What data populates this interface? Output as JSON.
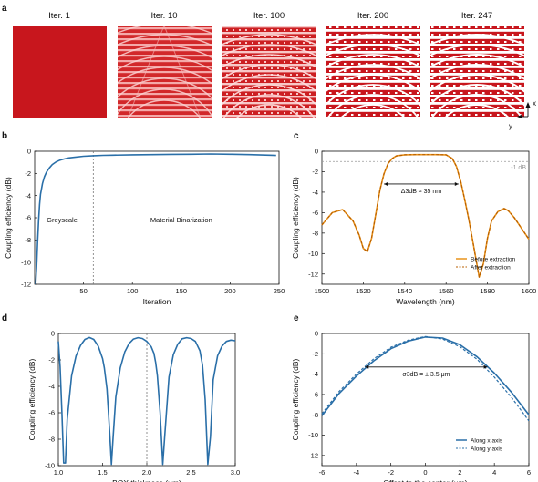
{
  "panels": {
    "a": {
      "letter": "a",
      "iterations": [
        "Iter. 1",
        "Iter. 10",
        "Iter. 100",
        "Iter. 200",
        "Iter. 247"
      ],
      "axis_x": "x",
      "axis_y": "y",
      "colors": {
        "base": "#c8161d",
        "light": "#f2b0b0",
        "white": "#ffffff"
      }
    },
    "b": {
      "letter": "b"
    },
    "c": {
      "letter": "c"
    },
    "d": {
      "letter": "d"
    },
    "e": {
      "letter": "e"
    }
  },
  "chart_data": [
    {
      "id": "b",
      "type": "line",
      "xlabel": "Iteration",
      "ylabel": "Coupling efficiency (dB)",
      "xlim": [
        0,
        250
      ],
      "ylim": [
        -12,
        0
      ],
      "xticks": [
        "50",
        "100",
        "150",
        "200",
        "250"
      ],
      "yticks": [
        "0",
        "-2",
        "-4",
        "-6",
        "-8",
        "-10",
        "-12"
      ],
      "color": "#2a6fa8",
      "vline": 60,
      "annotations": [
        "Greyscale",
        "Material Binarization"
      ],
      "series": [
        {
          "x": [
            1,
            2,
            3,
            4,
            5,
            6,
            8,
            10,
            12,
            15,
            18,
            22,
            26,
            30,
            35,
            40,
            50,
            60,
            70,
            80,
            100,
            120,
            140,
            160,
            180,
            200,
            220,
            240,
            247
          ],
          "y": [
            -12,
            -10.5,
            -8.2,
            -6.3,
            -4.8,
            -3.9,
            -2.9,
            -2.3,
            -1.9,
            -1.5,
            -1.2,
            -0.95,
            -0.8,
            -0.7,
            -0.6,
            -0.55,
            -0.45,
            -0.4,
            -0.37,
            -0.35,
            -0.32,
            -0.3,
            -0.28,
            -0.27,
            -0.25,
            -0.27,
            -0.3,
            -0.35,
            -0.38
          ]
        }
      ]
    },
    {
      "id": "c",
      "type": "line",
      "xlabel": "Wavelength (nm)",
      "ylabel": "Coupling efficiency (dB)",
      "xlim": [
        1500,
        1600
      ],
      "ylim": [
        -13,
        0
      ],
      "xticks": [
        "1500",
        "1520",
        "1540",
        "1560",
        "1580",
        "1600"
      ],
      "yticks": [
        "0",
        "-2",
        "-4",
        "-6",
        "-8",
        "-10",
        "-12"
      ],
      "color": "#e8921a",
      "ref_line": -1,
      "ref_label": "-1 dB",
      "bandwidth_label": "Δ3dB ≈ 35 nm",
      "bandwidth_range": [
        1530,
        1566
      ],
      "bandwidth_y": -3.2,
      "legend": [
        "Before extraction",
        "After extraction"
      ],
      "legend_position": "bottom-right",
      "series": [
        {
          "name": "Before extraction",
          "x": [
            1500,
            1505,
            1510,
            1515,
            1518,
            1520,
            1522,
            1524,
            1526,
            1528,
            1530,
            1532,
            1534,
            1536,
            1540,
            1545,
            1550,
            1555,
            1560,
            1563,
            1565,
            1567,
            1569,
            1571,
            1573,
            1575,
            1576,
            1578,
            1580,
            1582,
            1585,
            1588,
            1590,
            1593,
            1596,
            1600
          ],
          "y": [
            -7.2,
            -6.0,
            -5.7,
            -6.8,
            -8.2,
            -9.5,
            -9.8,
            -8.5,
            -6.2,
            -3.8,
            -2.2,
            -1.2,
            -0.7,
            -0.45,
            -0.35,
            -0.33,
            -0.33,
            -0.33,
            -0.35,
            -0.7,
            -1.5,
            -2.9,
            -4.7,
            -6.7,
            -8.9,
            -11.2,
            -12.3,
            -11.0,
            -8.5,
            -6.8,
            -5.9,
            -5.6,
            -5.8,
            -6.5,
            -7.4,
            -8.6
          ]
        },
        {
          "name": "After extraction",
          "x": [
            1500,
            1505,
            1510,
            1515,
            1518,
            1520,
            1522,
            1524,
            1526,
            1528,
            1530,
            1532,
            1534,
            1536,
            1540,
            1545,
            1550,
            1555,
            1560,
            1563,
            1565,
            1567,
            1569,
            1571,
            1573,
            1575,
            1576,
            1578,
            1580,
            1582,
            1585,
            1588,
            1590,
            1593,
            1596,
            1600
          ],
          "y": [
            -7.2,
            -6.0,
            -5.7,
            -6.8,
            -8.2,
            -9.5,
            -9.8,
            -8.5,
            -6.2,
            -3.8,
            -2.2,
            -1.2,
            -0.7,
            -0.45,
            -0.35,
            -0.33,
            -0.33,
            -0.33,
            -0.35,
            -0.7,
            -1.5,
            -2.9,
            -4.7,
            -6.7,
            -8.9,
            -11.2,
            -12.3,
            -11.0,
            -8.5,
            -6.8,
            -5.9,
            -5.6,
            -5.8,
            -6.5,
            -7.4,
            -8.6
          ]
        }
      ]
    },
    {
      "id": "d",
      "type": "line",
      "xlabel": "BOX thickness (μm)",
      "ylabel": "Coupling efficiency (dB)",
      "xlim": [
        1.0,
        3.0
      ],
      "ylim": [
        -10,
        0
      ],
      "xticks": [
        "1.0",
        "1.5",
        "2.0",
        "2.5",
        "3.0"
      ],
      "yticks": [
        "0",
        "-2",
        "-4",
        "-6",
        "-8",
        "-10"
      ],
      "color": "#2a6fa8",
      "vline": 2.0,
      "series": [
        {
          "x": [
            1.0,
            1.02,
            1.04,
            1.06,
            1.08,
            1.1,
            1.15,
            1.2,
            1.25,
            1.3,
            1.35,
            1.4,
            1.45,
            1.5,
            1.52,
            1.55,
            1.58,
            1.6,
            1.62,
            1.65,
            1.7,
            1.75,
            1.8,
            1.85,
            1.9,
            1.95,
            2.0,
            2.05,
            2.08,
            2.1,
            2.12,
            2.15,
            2.18,
            2.2,
            2.25,
            2.3,
            2.35,
            2.4,
            2.45,
            2.5,
            2.55,
            2.6,
            2.63,
            2.66,
            2.69,
            2.72,
            2.75,
            2.8,
            2.85,
            2.9,
            2.95,
            3.0
          ],
          "y": [
            -0.6,
            -2.5,
            -6.0,
            -9.8,
            -9.8,
            -6.5,
            -3.2,
            -1.7,
            -0.9,
            -0.45,
            -0.3,
            -0.45,
            -0.95,
            -1.9,
            -2.6,
            -4.2,
            -7.5,
            -9.9,
            -7.8,
            -4.8,
            -2.6,
            -1.4,
            -0.75,
            -0.42,
            -0.32,
            -0.38,
            -0.6,
            -1.0,
            -1.5,
            -2.2,
            -3.2,
            -6.0,
            -9.9,
            -8.0,
            -3.3,
            -1.6,
            -0.8,
            -0.4,
            -0.32,
            -0.38,
            -0.6,
            -1.3,
            -2.4,
            -5.0,
            -9.9,
            -7.8,
            -3.5,
            -1.7,
            -0.95,
            -0.6,
            -0.5,
            -0.55
          ]
        }
      ]
    },
    {
      "id": "e",
      "type": "line",
      "xlabel": "Offset to the center (μm)",
      "ylabel": "Coupling efficiency (dB)",
      "xlim": [
        -6,
        6
      ],
      "ylim": [
        -13,
        0
      ],
      "xticks": [
        "-6",
        "-4",
        "-2",
        "0",
        "2",
        "4",
        "6"
      ],
      "yticks": [
        "0",
        "-2",
        "-4",
        "-6",
        "-8",
        "-10",
        "-12"
      ],
      "color": "#2a6fa8",
      "sigma_label": "σ3dB = ± 3.5 μm",
      "sigma_range": [
        -3.5,
        3.6
      ],
      "sigma_y": -3.3,
      "legend": [
        "Along x axis",
        "Along y axis"
      ],
      "legend_position": "bottom-right",
      "series": [
        {
          "name": "Along x axis",
          "x": [
            -6,
            -5,
            -4,
            -3,
            -2,
            -1,
            0,
            1,
            2,
            3,
            4,
            5,
            6
          ],
          "y": [
            -8.1,
            -5.9,
            -4.2,
            -2.7,
            -1.5,
            -0.75,
            -0.35,
            -0.45,
            -1.1,
            -2.3,
            -3.9,
            -5.8,
            -8.0
          ]
        },
        {
          "name": "Along y axis",
          "x": [
            -6,
            -5,
            -4,
            -3,
            -2,
            -1,
            0,
            1,
            2,
            3,
            4,
            5,
            6
          ],
          "y": [
            -7.9,
            -5.7,
            -4.0,
            -2.5,
            -1.35,
            -0.65,
            -0.3,
            -0.55,
            -1.3,
            -2.55,
            -4.3,
            -6.3,
            -8.6
          ]
        }
      ]
    }
  ]
}
